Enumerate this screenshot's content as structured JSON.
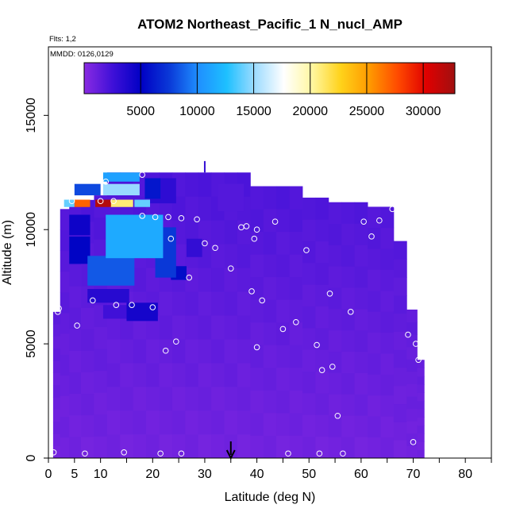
{
  "chart_data": {
    "type": "heatmap",
    "title": "ATOM2 Northeast_Pacific_1 N_nucl_AMP",
    "annotations": {
      "flights": "Flts: 1,2",
      "dates": "MMDD: 0126,0129"
    },
    "xlabel": "Latitude (deg N)",
    "ylabel": "Altitude (m)",
    "xlim": [
      0,
      85
    ],
    "ylim": [
      0,
      18000
    ],
    "x_ticks": [
      0,
      5,
      10,
      20,
      30,
      40,
      50,
      60,
      70,
      80
    ],
    "y_ticks": [
      0,
      5000,
      10000,
      15000
    ],
    "colorbar": {
      "ticks": [
        5000,
        10000,
        15000,
        20000,
        25000,
        30000
      ],
      "range": [
        0,
        32800
      ],
      "stops": [
        "#8a2be2",
        "#3f10d8",
        "#0000c4",
        "#0a3ad8",
        "#1f8fff",
        "#1ec0ff",
        "#9fdcff",
        "#ffffff",
        "#fff7a0",
        "#ffd21a",
        "#ff9a00",
        "#ff4a00",
        "#e00000",
        "#a01010"
      ]
    },
    "arrow_marker_latitude": 35,
    "columns": [
      {
        "lat": 1.5,
        "ymax": 6400
      },
      {
        "lat": 3.0,
        "ymax": 10900
      },
      {
        "lat": 5.0,
        "ymax": 11300
      },
      {
        "lat": 7.5,
        "ymax": 11300
      },
      {
        "lat": 10.0,
        "ymax": 11500
      },
      {
        "lat": 12.5,
        "ymax": 12500
      },
      {
        "lat": 15.0,
        "ymax": 12500
      },
      {
        "lat": 17.5,
        "ymax": 12500
      },
      {
        "lat": 20.0,
        "ymax": 12500
      },
      {
        "lat": 22.5,
        "ymax": 12500
      },
      {
        "lat": 25.0,
        "ymax": 12500
      },
      {
        "lat": 27.5,
        "ymax": 12500
      },
      {
        "lat": 30.0,
        "ymax": 12500
      },
      {
        "lat": 32.5,
        "ymax": 12500
      },
      {
        "lat": 35.0,
        "ymax": 12500
      },
      {
        "lat": 37.5,
        "ymax": 12500
      },
      {
        "lat": 40.0,
        "ymax": 11900
      },
      {
        "lat": 42.5,
        "ymax": 11900
      },
      {
        "lat": 45.0,
        "ymax": 11900
      },
      {
        "lat": 47.5,
        "ymax": 11900
      },
      {
        "lat": 50.0,
        "ymax": 11400
      },
      {
        "lat": 52.5,
        "ymax": 11400
      },
      {
        "lat": 55.0,
        "ymax": 11200
      },
      {
        "lat": 57.5,
        "ymax": 11200
      },
      {
        "lat": 60.0,
        "ymax": 11200
      },
      {
        "lat": 62.5,
        "ymax": 11000
      },
      {
        "lat": 65.0,
        "ymax": 11000
      },
      {
        "lat": 67.5,
        "ymax": 9500
      },
      {
        "lat": 70.0,
        "ymax": 6500
      },
      {
        "lat": 71.5,
        "ymax": 4300
      }
    ],
    "hotspots": [
      {
        "lat": 10.5,
        "alt": 11150,
        "value": 32000,
        "dlat": 3.0,
        "dalt": 320
      },
      {
        "lat": 6.5,
        "alt": 11150,
        "value": 27000,
        "dlat": 3.0,
        "dalt": 320
      },
      {
        "lat": 14.0,
        "alt": 11150,
        "value": 21000,
        "dlat": 4.5,
        "dalt": 320
      },
      {
        "lat": 4.0,
        "alt": 11150,
        "value": 14000,
        "dlat": 2.0,
        "dalt": 320
      },
      {
        "lat": 18.0,
        "alt": 11150,
        "value": 14000,
        "dlat": 3.0,
        "dalt": 320
      },
      {
        "lat": 14.0,
        "alt": 11750,
        "value": 15000,
        "dlat": 7.0,
        "dalt": 500
      },
      {
        "lat": 14.0,
        "alt": 12300,
        "value": 11000,
        "dlat": 7.0,
        "dalt": 400
      },
      {
        "lat": 7.5,
        "alt": 11750,
        "value": 8000,
        "dlat": 5.0,
        "dalt": 500
      },
      {
        "lat": 20.0,
        "alt": 11800,
        "value": 6000,
        "dlat": 3.0,
        "dalt": 900
      },
      {
        "lat": 16.5,
        "alt": 9700,
        "value": 11500,
        "dlat": 11.0,
        "dalt": 1900
      },
      {
        "lat": 12.0,
        "alt": 8200,
        "value": 8500,
        "dlat": 9.0,
        "dalt": 1300
      },
      {
        "lat": 22.5,
        "alt": 9000,
        "value": 7500,
        "dlat": 4.0,
        "dalt": 2200
      },
      {
        "lat": 6.0,
        "alt": 10200,
        "value": 4500,
        "dlat": 4.0,
        "dalt": 900
      },
      {
        "lat": 6.0,
        "alt": 9100,
        "value": 5200,
        "dlat": 4.0,
        "dalt": 1200
      },
      {
        "lat": 11.5,
        "alt": 7100,
        "value": 3500,
        "dlat": 8.0,
        "dalt": 600
      },
      {
        "lat": 18.0,
        "alt": 6400,
        "value": 4200,
        "dlat": 6.0,
        "dalt": 800
      },
      {
        "lat": 13.0,
        "alt": 6400,
        "value": 2500,
        "dlat": 5.0,
        "dalt": 600
      },
      {
        "lat": 25.0,
        "alt": 8100,
        "value": 5600,
        "dlat": 3.0,
        "dalt": 600
      },
      {
        "lat": 28.0,
        "alt": 9200,
        "value": 3000,
        "dlat": 3.0,
        "dalt": 800
      },
      {
        "lat": 22.0,
        "alt": 11700,
        "value": 3200,
        "dlat": 5.0,
        "dalt": 1100
      },
      {
        "lat": 35.0,
        "alt": 11400,
        "value": 1800,
        "dlat": 5.0,
        "dalt": 1200
      }
    ],
    "markers": [
      {
        "lat": 1,
        "alt": 250
      },
      {
        "lat": 7,
        "alt": 200
      },
      {
        "lat": 14.5,
        "alt": 250
      },
      {
        "lat": 21.5,
        "alt": 200
      },
      {
        "lat": 25.5,
        "alt": 200
      },
      {
        "lat": 46,
        "alt": 200
      },
      {
        "lat": 52,
        "alt": 200
      },
      {
        "lat": 56.5,
        "alt": 200
      },
      {
        "lat": 70,
        "alt": 700
      },
      {
        "lat": 55.5,
        "alt": 1850
      },
      {
        "lat": 52.5,
        "alt": 3850
      },
      {
        "lat": 54.5,
        "alt": 4000
      },
      {
        "lat": 71,
        "alt": 4300
      },
      {
        "lat": 70.5,
        "alt": 5000
      },
      {
        "lat": 69,
        "alt": 5400
      },
      {
        "lat": 40,
        "alt": 4850
      },
      {
        "lat": 51.5,
        "alt": 4950
      },
      {
        "lat": 24.5,
        "alt": 5100
      },
      {
        "lat": 22.5,
        "alt": 4700
      },
      {
        "lat": 5.5,
        "alt": 5800
      },
      {
        "lat": 45,
        "alt": 5650
      },
      {
        "lat": 47.5,
        "alt": 5950
      },
      {
        "lat": 58,
        "alt": 6400
      },
      {
        "lat": 1.8,
        "alt": 6400
      },
      {
        "lat": 2,
        "alt": 6550
      },
      {
        "lat": 8.5,
        "alt": 6900
      },
      {
        "lat": 13,
        "alt": 6700
      },
      {
        "lat": 16,
        "alt": 6700
      },
      {
        "lat": 20,
        "alt": 6600
      },
      {
        "lat": 27,
        "alt": 7900
      },
      {
        "lat": 35,
        "alt": 8300
      },
      {
        "lat": 39,
        "alt": 7300
      },
      {
        "lat": 41,
        "alt": 6900
      },
      {
        "lat": 54,
        "alt": 7200
      },
      {
        "lat": 23.5,
        "alt": 9600
      },
      {
        "lat": 30,
        "alt": 9400
      },
      {
        "lat": 32,
        "alt": 9200
      },
      {
        "lat": 39.5,
        "alt": 9600
      },
      {
        "lat": 49.5,
        "alt": 9100
      },
      {
        "lat": 18,
        "alt": 10600
      },
      {
        "lat": 20.5,
        "alt": 10550
      },
      {
        "lat": 23,
        "alt": 10550
      },
      {
        "lat": 25.5,
        "alt": 10500
      },
      {
        "lat": 28.5,
        "alt": 10450
      },
      {
        "lat": 37,
        "alt": 10100
      },
      {
        "lat": 38,
        "alt": 10150
      },
      {
        "lat": 40,
        "alt": 10000
      },
      {
        "lat": 43.5,
        "alt": 10350
      },
      {
        "lat": 60.5,
        "alt": 10350
      },
      {
        "lat": 62,
        "alt": 9700
      },
      {
        "lat": 63.5,
        "alt": 10400
      },
      {
        "lat": 66,
        "alt": 10900
      },
      {
        "lat": 4.5,
        "alt": 11250
      },
      {
        "lat": 10,
        "alt": 11250
      },
      {
        "lat": 12.5,
        "alt": 11250
      },
      {
        "lat": 18,
        "alt": 12400
      },
      {
        "lat": 11,
        "alt": 12100
      }
    ]
  }
}
